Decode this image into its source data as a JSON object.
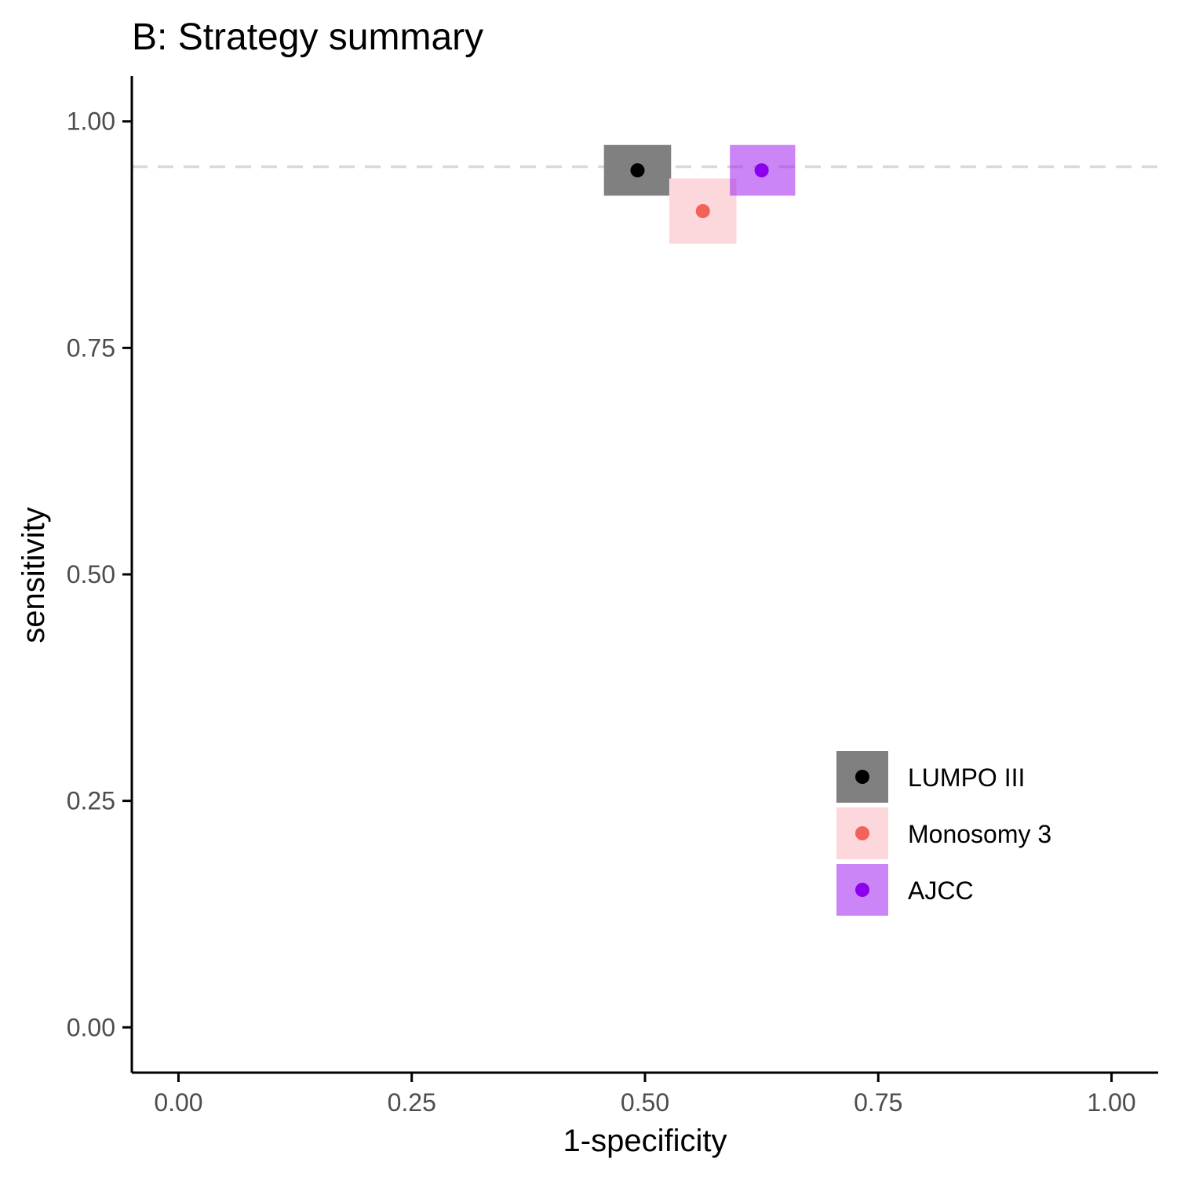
{
  "chart_data": {
    "type": "scatter",
    "title": "B: Strategy summary",
    "xlabel": "1-specificity",
    "ylabel": "sensitivity",
    "xlim": [
      -0.05,
      1.05
    ],
    "ylim": [
      -0.05,
      1.05
    ],
    "x_ticks": [
      0,
      0.25,
      0.5,
      0.75,
      1
    ],
    "y_ticks": [
      0,
      0.25,
      0.5,
      0.75,
      1
    ],
    "x_tick_labels": [
      "0.00",
      "0.25",
      "0.50",
      "0.75",
      "1.00"
    ],
    "y_tick_labels": [
      "0.00",
      "0.25",
      "0.50",
      "0.75",
      "1.00"
    ],
    "reference_line": {
      "y": 0.95,
      "style": "dashed",
      "color": "#d9d9d9"
    },
    "grid": false,
    "legend_position": "bottom-right",
    "series": [
      {
        "name": "LUMPO III",
        "x": 0.492,
        "y": 0.946,
        "x_range": [
          0.456,
          0.528
        ],
        "y_range": [
          0.918,
          0.974
        ],
        "point_color": "#000000",
        "box_color": "#808080",
        "box_opacity": 1.0
      },
      {
        "name": "Monosomy 3",
        "x": 0.562,
        "y": 0.901,
        "x_range": [
          0.526,
          0.598
        ],
        "y_range": [
          0.865,
          0.937
        ],
        "point_color": "#f0625a",
        "box_color": "#fcd7dc",
        "box_opacity": 1.0
      },
      {
        "name": "AJCC",
        "x": 0.625,
        "y": 0.946,
        "x_range": [
          0.591,
          0.661
        ],
        "y_range": [
          0.918,
          0.974
        ],
        "point_color": "#8b00ee",
        "box_color": "#a020f0",
        "box_opacity": 0.55
      }
    ]
  }
}
